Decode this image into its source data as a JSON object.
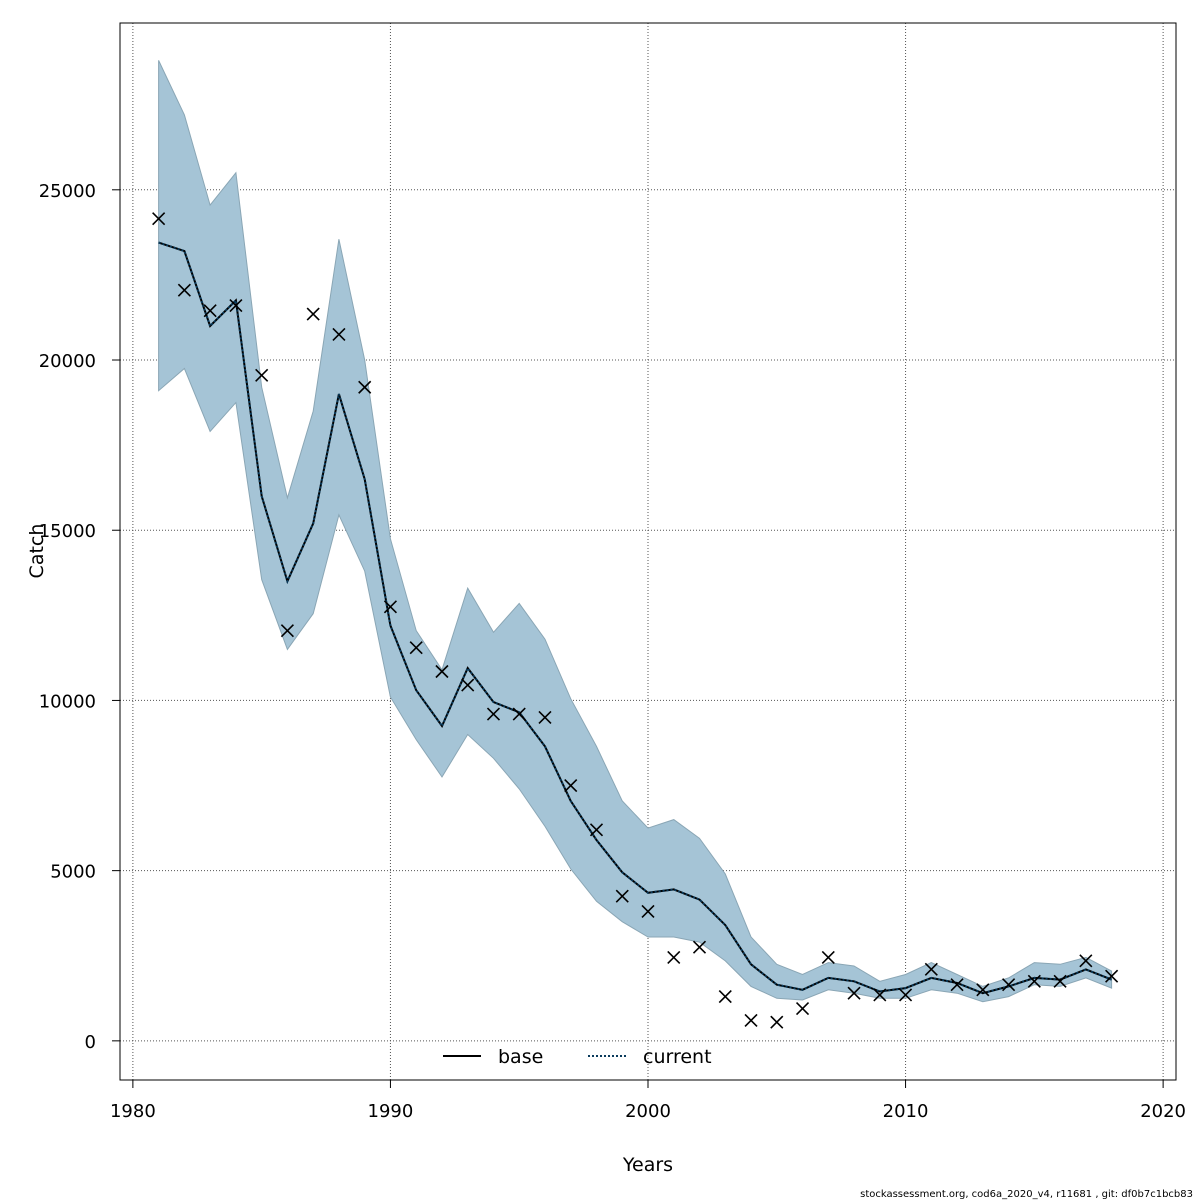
{
  "chart_data": {
    "type": "line",
    "xlabel": "Years",
    "ylabel": "Catch",
    "xlim": [
      1979.5,
      2020.5
    ],
    "ylim": [
      -1150,
      29900
    ],
    "x_ticks": [
      1980,
      1990,
      2000,
      2010,
      2020
    ],
    "y_ticks": [
      0,
      5000,
      10000,
      15000,
      20000,
      25000
    ],
    "grid": true,
    "legend_position": "bottom",
    "colors": {
      "band_fill": "#a5c4d6",
      "band_stroke": "#8aa6b5",
      "current_line": "#0a3b5c",
      "base_line": "#000000",
      "observed_marker": "#000000",
      "grid": "#555555"
    },
    "years": [
      1981,
      1982,
      1983,
      1984,
      1985,
      1986,
      1987,
      1988,
      1989,
      1990,
      1991,
      1992,
      1993,
      1994,
      1995,
      1996,
      1997,
      1998,
      1999,
      2000,
      2001,
      2002,
      2003,
      2004,
      2005,
      2006,
      2007,
      2008,
      2009,
      2010,
      2011,
      2012,
      2013,
      2014,
      2015,
      2016,
      2017,
      2018
    ],
    "series": [
      {
        "name": "current",
        "style": "dotted-line-with-band",
        "estimate": [
          23450,
          23200,
          21000,
          21750,
          16000,
          13500,
          15200,
          19000,
          16500,
          12200,
          10300,
          9250,
          10950,
          9950,
          9650,
          8650,
          7050,
          5900,
          4950,
          4350,
          4450,
          4150,
          3400,
          2250,
          1650,
          1500,
          1850,
          1750,
          1450,
          1550,
          1850,
          1700,
          1400,
          1600,
          1850,
          1800,
          2100,
          1800
        ],
        "upper": [
          28800,
          27200,
          24550,
          25500,
          19200,
          15950,
          18500,
          23550,
          20000,
          14750,
          12050,
          10900,
          13300,
          12000,
          12850,
          11800,
          10050,
          8650,
          7050,
          6250,
          6500,
          5950,
          4900,
          3050,
          2250,
          1950,
          2300,
          2200,
          1750,
          1950,
          2300,
          1950,
          1600,
          1850,
          2300,
          2250,
          2450,
          2050
        ],
        "lower": [
          19100,
          19750,
          17900,
          18750,
          13550,
          11500,
          12550,
          15450,
          13800,
          10100,
          8850,
          7750,
          9000,
          8300,
          7400,
          6300,
          5050,
          4100,
          3500,
          3050,
          3050,
          2900,
          2350,
          1600,
          1250,
          1200,
          1500,
          1400,
          1250,
          1250,
          1500,
          1400,
          1150,
          1300,
          1650,
          1600,
          1850,
          1550
        ]
      },
      {
        "name": "base",
        "style": "solid-line"
      }
    ],
    "observed": [
      24150,
      22050,
      21450,
      21600,
      19550,
      12050,
      21350,
      20750,
      19200,
      12750,
      11550,
      10850,
      10450,
      9600,
      9600,
      9500,
      7500,
      6200,
      4250,
      3800,
      2450,
      2750,
      1300,
      600,
      550,
      950,
      2450,
      1400,
      1350,
      1350,
      2100,
      1650,
      1500,
      1650,
      1750,
      1750,
      2350,
      1900
    ]
  },
  "footer_note": "stockassessment.org, cod6a_2020_v4, r11681 , git: df0b7c1bcb83"
}
